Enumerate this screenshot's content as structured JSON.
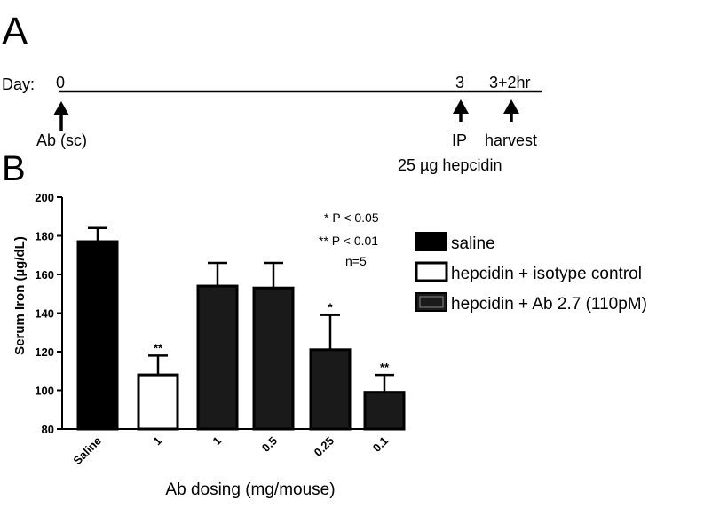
{
  "panel_a": {
    "label": "A",
    "day_prefix": "Day:",
    "day_marks": [
      "0",
      "3",
      "3+2hr"
    ],
    "events": [
      "Ab (sc)",
      "IP",
      "harvest"
    ],
    "dose": "25 µg hepcidin"
  },
  "panel_b": {
    "label": "B"
  },
  "stats": {
    "lines": [
      "* P < 0.05",
      "** P < 0.01",
      "n=5"
    ]
  },
  "colors": {
    "saline": "#000000",
    "hepcidin_isotype": "#ffffff",
    "hepcidin_ab": "#1a1a1a",
    "stroke": "#000000"
  },
  "chart_data": {
    "type": "bar",
    "categories": [
      "Saline",
      "1",
      "1",
      "0.5",
      "0.25",
      "0.1"
    ],
    "values": [
      177,
      108,
      154,
      153,
      121,
      99
    ],
    "errors": [
      7,
      10,
      12,
      13,
      18,
      9
    ],
    "significance": [
      "",
      "**",
      "",
      "",
      "*",
      "**"
    ],
    "bar_series": [
      "saline",
      "hepcidin + isotype control",
      "hepcidin + Ab 2.7 (110pM)",
      "hepcidin + Ab 2.7 (110pM)",
      "hepcidin + Ab 2.7 (110pM)",
      "hepcidin + Ab 2.7 (110pM)"
    ],
    "series": [
      {
        "name": "saline",
        "fill": "#000000"
      },
      {
        "name": "hepcidin + isotype control",
        "fill": "#ffffff"
      },
      {
        "name": "hepcidin + Ab 2.7 (110pM)",
        "fill": "#1a1a1a"
      }
    ],
    "xlabel": "Ab dosing (mg/mouse)",
    "ylabel": "Serum Iron (µg/dL)",
    "ylim": [
      80,
      200
    ],
    "yticks": [
      "80",
      "100",
      "120",
      "140",
      "160",
      "180",
      "200"
    ],
    "legend_position": "right",
    "grid": false
  }
}
